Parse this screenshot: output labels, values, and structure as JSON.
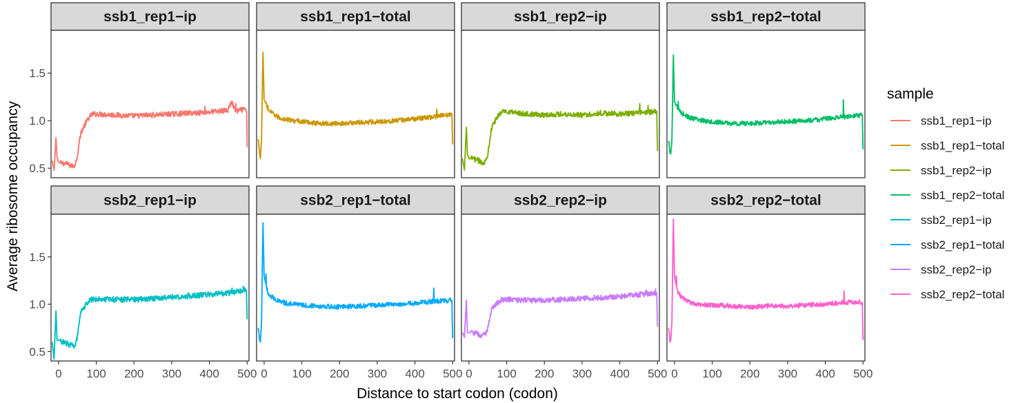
{
  "chart_data": {
    "type": "line",
    "layout": "facet-grid-2x4",
    "xlabel": "Distance to start codon (codon)",
    "ylabel": "Average ribosome occupancy",
    "xlim": [
      -20,
      505
    ],
    "ylim": [
      0.4,
      1.95
    ],
    "xticks": [
      0,
      100,
      200,
      300,
      400,
      500
    ],
    "yticks": [
      0.5,
      1.0,
      1.5
    ],
    "ytick_labels": [
      "0.5",
      "1.0",
      "1.5"
    ],
    "grid": false,
    "legend": {
      "title": "sample",
      "placement": "right"
    },
    "series": [
      {
        "name": "ssb1_rep1−ip",
        "color": "#F8766D",
        "shape": "ip",
        "key_points": [
          [
            -17,
            0.58
          ],
          [
            -12,
            0.48
          ],
          [
            -7,
            0.82
          ],
          [
            -4,
            0.62
          ],
          [
            0,
            0.56
          ],
          [
            10,
            0.55
          ],
          [
            20,
            0.55
          ],
          [
            30,
            0.53
          ],
          [
            40,
            0.52
          ],
          [
            45,
            0.55
          ],
          [
            50,
            0.64
          ],
          [
            55,
            0.78
          ],
          [
            60,
            0.88
          ],
          [
            70,
            0.96
          ],
          [
            80,
            1.03
          ],
          [
            90,
            1.07
          ],
          [
            100,
            1.07
          ],
          [
            150,
            1.06
          ],
          [
            200,
            1.05
          ],
          [
            250,
            1.06
          ],
          [
            300,
            1.07
          ],
          [
            350,
            1.08
          ],
          [
            400,
            1.09
          ],
          [
            450,
            1.11
          ],
          [
            458,
            1.2
          ],
          [
            470,
            1.1
          ],
          [
            495,
            1.12
          ],
          [
            499,
            1.09
          ],
          [
            500,
            0.72
          ]
        ],
        "noise": 0.028,
        "spikes": [
          [
            458,
            1.2
          ],
          [
            388,
            1.15
          ],
          [
            470,
            1.18
          ]
        ]
      },
      {
        "name": "ssb1_rep1−total",
        "color": "#CD9600",
        "shape": "total",
        "key_points": [
          [
            -15,
            0.8
          ],
          [
            -12,
            0.65
          ],
          [
            -10,
            0.6
          ],
          [
            -7,
            0.8
          ],
          [
            -3,
            1.72
          ],
          [
            0,
            1.22
          ],
          [
            5,
            1.18
          ],
          [
            10,
            1.12
          ],
          [
            20,
            1.08
          ],
          [
            40,
            1.03
          ],
          [
            60,
            1.01
          ],
          [
            100,
            0.99
          ],
          [
            150,
            0.97
          ],
          [
            200,
            0.97
          ],
          [
            250,
            0.98
          ],
          [
            300,
            0.99
          ],
          [
            350,
            1.0
          ],
          [
            400,
            1.02
          ],
          [
            450,
            1.04
          ],
          [
            498,
            1.07
          ],
          [
            500,
            0.75
          ]
        ],
        "noise": 0.025,
        "spikes": [
          [
            458,
            1.12
          ],
          [
            10,
            1.16
          ]
        ]
      },
      {
        "name": "ssb1_rep2−ip",
        "color": "#7CAE00",
        "shape": "ip",
        "key_points": [
          [
            -17,
            0.6
          ],
          [
            -12,
            0.48
          ],
          [
            -7,
            0.93
          ],
          [
            -4,
            0.65
          ],
          [
            0,
            0.6
          ],
          [
            10,
            0.6
          ],
          [
            20,
            0.59
          ],
          [
            30,
            0.57
          ],
          [
            40,
            0.56
          ],
          [
            45,
            0.58
          ],
          [
            50,
            0.66
          ],
          [
            55,
            0.8
          ],
          [
            60,
            0.92
          ],
          [
            70,
            1.0
          ],
          [
            80,
            1.07
          ],
          [
            90,
            1.1
          ],
          [
            100,
            1.1
          ],
          [
            150,
            1.07
          ],
          [
            200,
            1.06
          ],
          [
            250,
            1.07
          ],
          [
            300,
            1.06
          ],
          [
            350,
            1.08
          ],
          [
            400,
            1.07
          ],
          [
            450,
            1.08
          ],
          [
            498,
            1.1
          ],
          [
            500,
            0.68
          ]
        ],
        "noise": 0.028,
        "spikes": [
          [
            453,
            1.18
          ],
          [
            475,
            1.16
          ]
        ]
      },
      {
        "name": "ssb1_rep2−total",
        "color": "#00BE67",
        "shape": "total",
        "key_points": [
          [
            -15,
            0.78
          ],
          [
            -12,
            0.66
          ],
          [
            -10,
            0.65
          ],
          [
            -7,
            0.78
          ],
          [
            -3,
            1.69
          ],
          [
            0,
            1.2
          ],
          [
            5,
            1.15
          ],
          [
            10,
            1.12
          ],
          [
            20,
            1.08
          ],
          [
            40,
            1.03
          ],
          [
            60,
            1.01
          ],
          [
            100,
            0.99
          ],
          [
            150,
            0.97
          ],
          [
            200,
            0.97
          ],
          [
            250,
            0.98
          ],
          [
            300,
            0.99
          ],
          [
            350,
            1.0
          ],
          [
            400,
            1.02
          ],
          [
            450,
            1.04
          ],
          [
            498,
            1.06
          ],
          [
            500,
            0.7
          ]
        ],
        "noise": 0.025,
        "spikes": [
          [
            448,
            1.22
          ],
          [
            10,
            1.2
          ]
        ]
      },
      {
        "name": "ssb2_rep1−ip",
        "color": "#00BFC4",
        "shape": "ip",
        "key_points": [
          [
            -17,
            0.6
          ],
          [
            -12,
            0.42
          ],
          [
            -7,
            0.93
          ],
          [
            -4,
            0.62
          ],
          [
            0,
            0.62
          ],
          [
            10,
            0.6
          ],
          [
            20,
            0.59
          ],
          [
            30,
            0.57
          ],
          [
            40,
            0.56
          ],
          [
            45,
            0.58
          ],
          [
            50,
            0.66
          ],
          [
            55,
            0.8
          ],
          [
            60,
            0.92
          ],
          [
            70,
            0.98
          ],
          [
            80,
            1.03
          ],
          [
            90,
            1.05
          ],
          [
            100,
            1.06
          ],
          [
            150,
            1.05
          ],
          [
            200,
            1.05
          ],
          [
            250,
            1.06
          ],
          [
            300,
            1.07
          ],
          [
            350,
            1.09
          ],
          [
            400,
            1.1
          ],
          [
            450,
            1.12
          ],
          [
            498,
            1.15
          ],
          [
            500,
            0.84
          ]
        ],
        "noise": 0.03,
        "spikes": [
          [
            460,
            1.17
          ],
          [
            490,
            1.19
          ]
        ]
      },
      {
        "name": "ssb2_rep1−total",
        "color": "#00A9FF",
        "shape": "total",
        "key_points": [
          [
            -15,
            0.74
          ],
          [
            -12,
            0.62
          ],
          [
            -10,
            0.6
          ],
          [
            -7,
            0.8
          ],
          [
            -3,
            1.86
          ],
          [
            0,
            1.3
          ],
          [
            5,
            1.2
          ],
          [
            10,
            1.12
          ],
          [
            20,
            1.08
          ],
          [
            40,
            1.03
          ],
          [
            60,
            1.01
          ],
          [
            100,
            0.99
          ],
          [
            150,
            0.98
          ],
          [
            200,
            0.97
          ],
          [
            250,
            0.98
          ],
          [
            300,
            0.99
          ],
          [
            350,
            1.0
          ],
          [
            400,
            1.01
          ],
          [
            450,
            1.03
          ],
          [
            498,
            1.04
          ],
          [
            500,
            0.64
          ]
        ],
        "noise": 0.025,
        "spikes": [
          [
            450,
            1.17
          ],
          [
            5,
            1.32
          ]
        ]
      },
      {
        "name": "ssb2_rep2−ip",
        "color": "#C77CFF",
        "shape": "ip",
        "key_points": [
          [
            -17,
            0.7
          ],
          [
            -12,
            0.65
          ],
          [
            -7,
            1.04
          ],
          [
            -4,
            0.7
          ],
          [
            0,
            0.7
          ],
          [
            10,
            0.7
          ],
          [
            20,
            0.69
          ],
          [
            30,
            0.67
          ],
          [
            40,
            0.67
          ],
          [
            45,
            0.69
          ],
          [
            50,
            0.75
          ],
          [
            55,
            0.85
          ],
          [
            60,
            0.95
          ],
          [
            70,
            1.0
          ],
          [
            80,
            1.03
          ],
          [
            90,
            1.05
          ],
          [
            100,
            1.05
          ],
          [
            150,
            1.04
          ],
          [
            200,
            1.04
          ],
          [
            250,
            1.05
          ],
          [
            300,
            1.06
          ],
          [
            350,
            1.07
          ],
          [
            400,
            1.08
          ],
          [
            450,
            1.1
          ],
          [
            498,
            1.12
          ],
          [
            500,
            0.76
          ]
        ],
        "noise": 0.028,
        "spikes": [
          [
            470,
            1.15
          ],
          [
            495,
            1.16
          ]
        ]
      },
      {
        "name": "ssb2_rep2−total",
        "color": "#FF61CC",
        "shape": "total",
        "key_points": [
          [
            -15,
            0.74
          ],
          [
            -12,
            0.6
          ],
          [
            -10,
            0.62
          ],
          [
            -7,
            0.8
          ],
          [
            -3,
            1.9
          ],
          [
            0,
            1.3
          ],
          [
            5,
            1.18
          ],
          [
            10,
            1.12
          ],
          [
            20,
            1.07
          ],
          [
            40,
            1.02
          ],
          [
            60,
            1.0
          ],
          [
            100,
            0.99
          ],
          [
            150,
            0.98
          ],
          [
            200,
            0.97
          ],
          [
            250,
            0.98
          ],
          [
            300,
            0.98
          ],
          [
            350,
            0.99
          ],
          [
            400,
            1.0
          ],
          [
            450,
            1.02
          ],
          [
            498,
            1.02
          ],
          [
            500,
            0.62
          ]
        ],
        "noise": 0.025,
        "spikes": [
          [
            450,
            1.14
          ],
          [
            5,
            1.3
          ]
        ]
      }
    ]
  }
}
